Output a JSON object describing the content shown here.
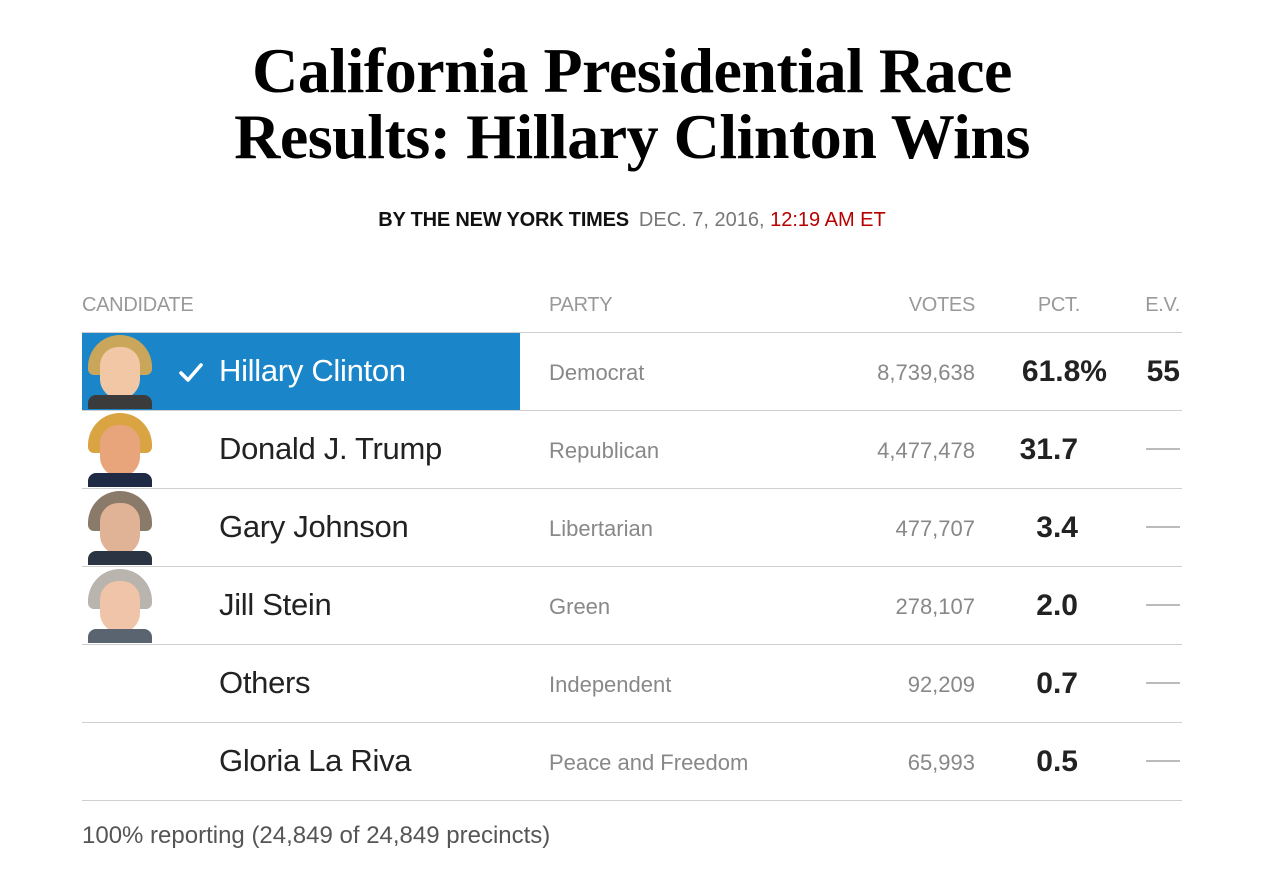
{
  "headline": {
    "line1": "California Presidential Race",
    "line2": "Results: Hillary Clinton Wins"
  },
  "byline": {
    "by": "BY THE NEW YORK TIMES",
    "date": "DEC. 7, 2016,",
    "time": "12:19 AM ET"
  },
  "table": {
    "headers": {
      "candidate": "CANDIDATE",
      "party": "PARTY",
      "votes": "VOTES",
      "pct": "PCT.",
      "ev": "E.V."
    },
    "rows": [
      {
        "name": "Hillary Clinton",
        "party": "Democrat",
        "votes": "8,739,638",
        "pct": "61.8%",
        "ev": "55",
        "winner": true,
        "photo": "hillary-clinton-photo"
      },
      {
        "name": "Donald J. Trump",
        "party": "Republican",
        "votes": "4,477,478",
        "pct": "31.7",
        "ev": "—",
        "photo": "donald-trump-photo"
      },
      {
        "name": "Gary Johnson",
        "party": "Libertarian",
        "votes": "477,707",
        "pct": "3.4",
        "ev": "—",
        "photo": "gary-johnson-photo"
      },
      {
        "name": "Jill Stein",
        "party": "Green",
        "votes": "278,107",
        "pct": "2.0",
        "ev": "—",
        "photo": "jill-stein-photo"
      },
      {
        "name": "Others",
        "party": "Independent",
        "votes": "92,209",
        "pct": "0.7",
        "ev": "—"
      },
      {
        "name": "Gloria La Riva",
        "party": "Peace and Freedom",
        "votes": "65,993",
        "pct": "0.5",
        "ev": "—"
      }
    ]
  },
  "footer": {
    "reporting": "100% reporting (24,849 of 24,849 precincts)"
  },
  "colors": {
    "winner_highlight": "#1a85c9",
    "time_red": "#b80000",
    "muted_text": "#888888",
    "rule": "#cfcfcf"
  },
  "icons": {
    "winner_check": "checkmark-icon"
  }
}
